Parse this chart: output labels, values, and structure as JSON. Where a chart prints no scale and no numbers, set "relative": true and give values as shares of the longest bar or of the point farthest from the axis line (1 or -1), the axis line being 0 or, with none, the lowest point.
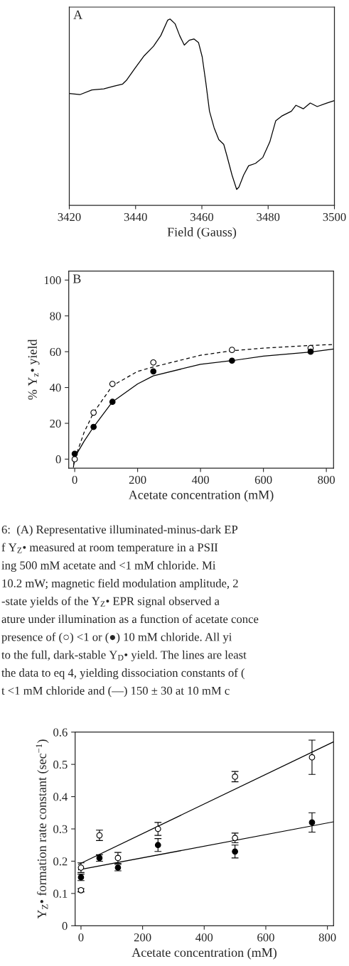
{
  "chart_data": [
    {
      "type": "line",
      "xlabel": "Field (Gauss)",
      "xlim": [
        3420,
        3500
      ],
      "xticks": [
        3420,
        3440,
        3460,
        3480,
        3500
      ],
      "relative": true,
      "tick_labels": "x",
      "annotations": [
        "A"
      ],
      "series": [
        {
          "color": "#000000",
          "x": [
            3420,
            3423.2,
            3426.8,
            3430.4,
            3433.2,
            3436.1,
            3437.2,
            3439.7,
            3442.6,
            3445.4,
            3447.6,
            3449.7,
            3450.4,
            3451.9,
            3453.3,
            3454.7,
            3456.2,
            3457.6,
            3459.0,
            3460.1,
            3461.2,
            3462.3,
            3463.7,
            3465.1,
            3466.6,
            3467.6,
            3469.1,
            3470.5,
            3471.2,
            3472.6,
            3474.1,
            3476.2,
            3478.4,
            3480.5,
            3482.3,
            3484.1,
            3487.0,
            3488.4,
            3490.6,
            3492.7,
            3494.8,
            3497.7,
            3500
          ],
          "values": [
            0.6,
            0.594,
            0.619,
            0.625,
            0.638,
            0.651,
            0.67,
            0.733,
            0.803,
            0.854,
            0.911,
            0.994,
            1.0,
            0.975,
            0.911,
            0.86,
            0.886,
            0.893,
            0.873,
            0.797,
            0.658,
            0.505,
            0.416,
            0.353,
            0.327,
            0.263,
            0.162,
            0.085,
            0.098,
            0.162,
            0.212,
            0.225,
            0.257,
            0.34,
            0.454,
            0.479,
            0.505,
            0.537,
            0.518,
            0.549,
            0.53,
            0.549,
            0.562
          ]
        }
      ]
    },
    {
      "type": "scatter",
      "xlabel": "Acetate concentration (mM)",
      "ylabel": "% Y$_{z}$• yield",
      "xlim": [
        -19,
        823
      ],
      "ylim": [
        -5,
        105
      ],
      "xticks": [
        0,
        200,
        400,
        600,
        800
      ],
      "yticks": [
        0,
        20,
        40,
        60,
        80,
        100
      ],
      "annotations": [
        "B",
        "6:  (A) Representative illuminated-minus-dark EP",
        "f Y$_{Z}$• measured at room temperature in a PSII",
        "ing 500 mM acetate and <1 mM chloride. Mi",
        "10.2 mW; magnetic field modulation amplitude, 2",
        "-state yields of the Y$_{Z}$• EPR signal observed a",
        "ature under illumination as a function of acetate conce",
        "presence of (○) <1 or (●) 10 mM chloride. All yi",
        "to the full, dark-stable Y$_{D}$• yield. The lines are least",
        "the data to eq 4, yielding dissociation constants of (",
        "t <1 mM chloride and (—) 150 ± 30 at 10 mM c"
      ],
      "series": [
        {
          "type": "line",
          "line_style": "dashed",
          "color": "#000000",
          "x": [
            -3,
            0,
            30,
            60,
            120,
            200,
            250,
            400,
            500,
            600,
            750,
            823
          ],
          "values": [
            -3,
            0,
            15,
            26,
            41,
            49,
            51.5,
            58,
            60.5,
            62,
            63.5,
            64
          ]
        },
        {
          "type": "line",
          "line_style": "solid",
          "color": "#000000",
          "x": [
            -4,
            0,
            30,
            60,
            120,
            200,
            250,
            400,
            500,
            600,
            750,
            823
          ],
          "values": [
            -4.5,
            1,
            10,
            18,
            32,
            42,
            46.5,
            53,
            55,
            57.5,
            59.8,
            61.5
          ]
        },
        {
          "type": "scatter",
          "marker": "circle",
          "color": "#ffffff",
          "x": [
            0,
            60,
            120,
            250,
            500,
            750
          ],
          "values": [
            0,
            26,
            42,
            54,
            61,
            62
          ]
        },
        {
          "type": "scatter",
          "marker": "circle",
          "color": "#000000",
          "x": [
            0,
            60,
            120,
            250,
            500,
            750
          ],
          "values": [
            3,
            18,
            32,
            49,
            55,
            60
          ]
        }
      ]
    },
    {
      "type": "scatter",
      "xlabel": "Acetate concentration (mM)",
      "ylabel": "Y$_{Z}$• formation rate constant (sec$^{−1}$)",
      "xlim": [
        -19,
        820
      ],
      "ylim": [
        0,
        0.6
      ],
      "xticks": [
        0,
        200,
        400,
        600,
        800
      ],
      "yticks": [
        0,
        0.1,
        0.2,
        0.3,
        0.4,
        0.5,
        0.6
      ],
      "series": [
        {
          "type": "line",
          "line_style": "solid",
          "color": "#000000",
          "x": [
            -8,
            820
          ],
          "values": [
            0.19,
            0.57
          ]
        },
        {
          "type": "line",
          "line_style": "solid",
          "color": "#000000",
          "x": [
            -8,
            820
          ],
          "values": [
            0.173,
            0.322
          ]
        },
        {
          "type": "scatter",
          "marker": "circle",
          "color": "#ffffff",
          "x": [
            0,
            0,
            60,
            120,
            250,
            500,
            500,
            750
          ],
          "values": [
            0.18,
            0.11,
            0.28,
            0.21,
            0.3,
            0.462,
            0.272,
            0.522
          ],
          "errors": [
            0.015,
            0.005,
            0.016,
            0.017,
            0.02,
            0.016,
            0.015,
            0.053
          ]
        },
        {
          "type": "scatter",
          "marker": "circle",
          "color": "#000000",
          "x": [
            0,
            60,
            120,
            250,
            500,
            750
          ],
          "values": [
            0.15,
            0.21,
            0.18,
            0.25,
            0.23,
            0.32
          ],
          "errors": [
            0.01,
            0.01,
            0.01,
            0.02,
            0.02,
            0.03
          ]
        }
      ]
    }
  ]
}
